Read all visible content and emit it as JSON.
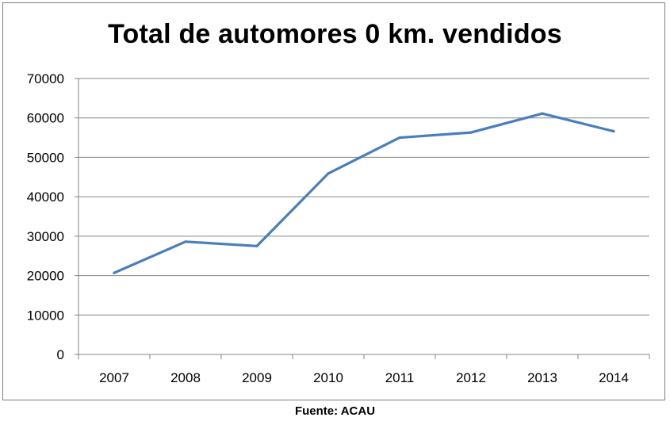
{
  "chart_data": {
    "type": "line",
    "title": "Total de automores 0 km. vendidos",
    "categories": [
      "2007",
      "2008",
      "2009",
      "2010",
      "2011",
      "2012",
      "2013",
      "2014"
    ],
    "series": [
      {
        "values": [
          20700,
          28600,
          27500,
          45900,
          55000,
          56300,
          61100,
          56600
        ],
        "color": "#4a7ebb"
      }
    ],
    "ylim": [
      0,
      70000
    ],
    "yticks": [
      0,
      10000,
      20000,
      30000,
      40000,
      50000,
      60000,
      70000
    ],
    "grid": true,
    "xlabel": "",
    "ylabel": ""
  },
  "source": "Fuente: ACAU",
  "colors": {
    "line": "#4a7ebb",
    "grid": "#868686",
    "axis": "#868686"
  }
}
